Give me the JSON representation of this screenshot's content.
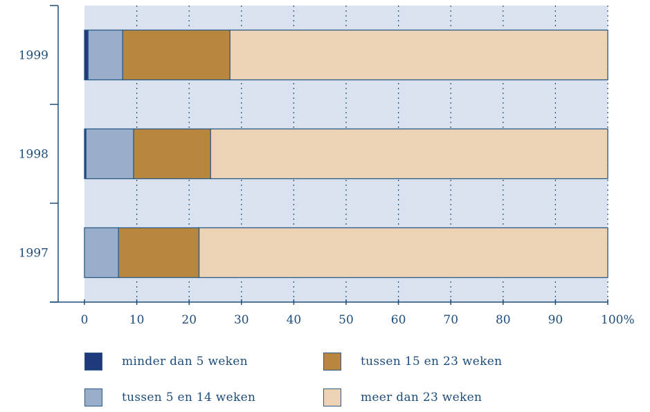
{
  "chart_data": {
    "type": "bar",
    "orientation": "horizontal",
    "stacked": true,
    "categories": [
      "1999",
      "1998",
      "1997"
    ],
    "series": [
      {
        "name": "minder dan 5 weken",
        "color": "#1f3a7a",
        "values": [
          0.7,
          0.3,
          0.0
        ]
      },
      {
        "name": "tussen 5 en 14 weken",
        "color": "#99aecb",
        "values": [
          6.6,
          9.1,
          6.5
        ]
      },
      {
        "name": "tussen 15 en 23 weken",
        "color": "#b8863e",
        "values": [
          20.5,
          14.7,
          15.4
        ]
      },
      {
        "name": "meer dan 23 weken",
        "color": "#ecd3b6",
        "values": [
          72.2,
          75.9,
          78.1
        ]
      }
    ],
    "xlim": [
      0,
      100
    ],
    "xticks": [
      "0",
      "10",
      "20",
      "30",
      "40",
      "50",
      "60",
      "70",
      "80",
      "90",
      "100%"
    ],
    "grid": true,
    "legend_position": "bottom"
  },
  "colors": {
    "plot_background": "#d9e2ee",
    "axis": "#1e4d7a",
    "bar_edge": "#2a5a85"
  }
}
